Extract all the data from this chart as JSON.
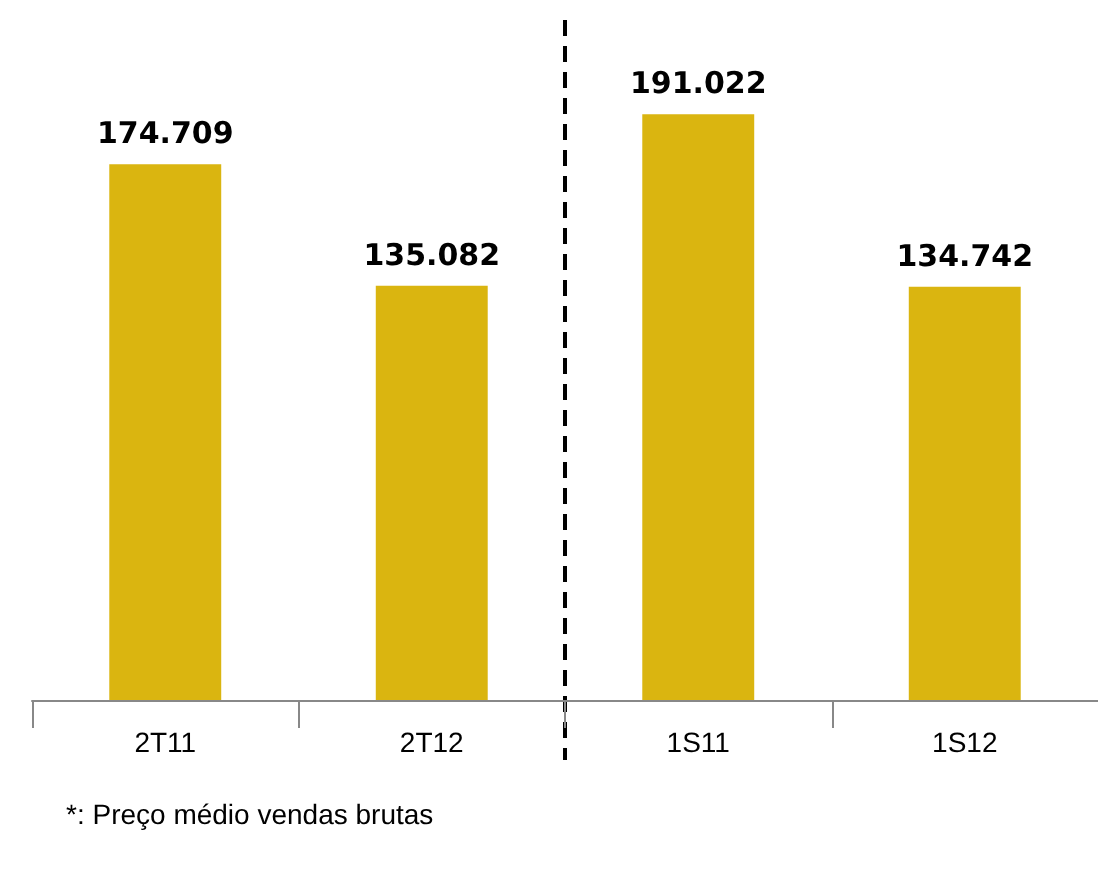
{
  "chart_data": {
    "type": "bar",
    "categories": [
      "2T11",
      "2T12",
      "1S11",
      "1S12"
    ],
    "values": [
      174709,
      135082,
      191022,
      134742
    ],
    "value_labels": [
      "174.709",
      "135.082",
      "191.022",
      "134.742"
    ],
    "color": "#dab510",
    "tick_labels": "x",
    "annotations": [
      "*: Preço médio vendas brutas"
    ]
  }
}
